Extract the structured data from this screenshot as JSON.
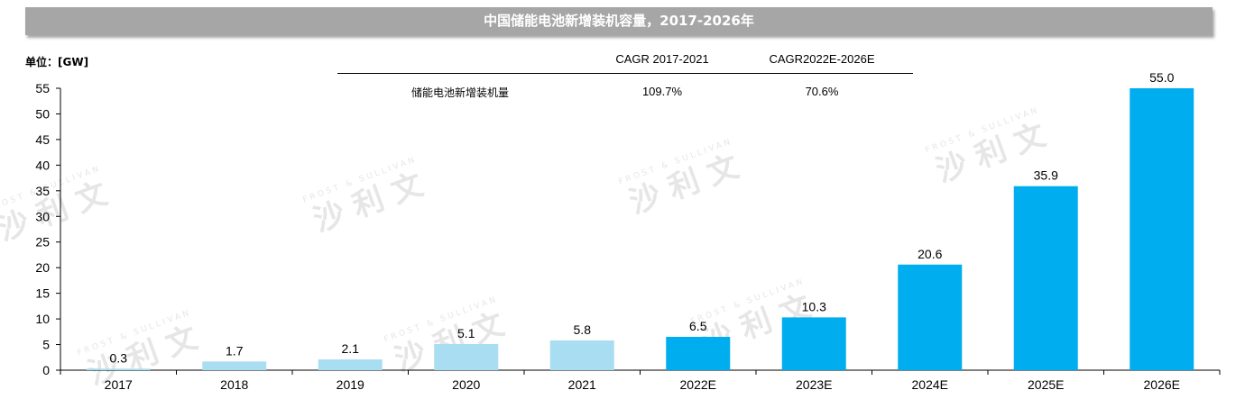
{
  "title": "中国储能电池新增装机容量，2017-2026年",
  "unit_label": "单位：[GW]",
  "cagr_table": {
    "headers": [
      "CAGR 2017-2021",
      "CAGR2022E-2026E"
    ],
    "row_label": "储能电池新增装机量",
    "values": [
      "109.7%",
      "70.6%"
    ]
  },
  "watermark": {
    "cn": "沙 利 文",
    "en": "FROST & SULLIVAN"
  },
  "chart_data": {
    "type": "bar",
    "title": "中国储能电池新增装机容量，2017-2026年",
    "ylabel": "单位：[GW]",
    "xlabel": "",
    "categories": [
      "2017",
      "2018",
      "2019",
      "2020",
      "2021",
      "2022E",
      "2023E",
      "2024E",
      "2025E",
      "2026E"
    ],
    "values": [
      0.3,
      1.7,
      2.1,
      5.1,
      5.8,
      6.5,
      10.3,
      20.6,
      35.9,
      55.0
    ],
    "value_labels": [
      "0.3",
      "1.7",
      "2.1",
      "5.1",
      "5.8",
      "6.5",
      "10.3",
      "20.6",
      "35.9",
      "55.0"
    ],
    "ylim": [
      0,
      55
    ],
    "yticks": [
      0,
      5,
      10,
      15,
      20,
      25,
      30,
      35,
      40,
      45,
      50,
      55
    ],
    "grid": false,
    "legend": "none",
    "colors": {
      "historical": "#a9def2",
      "forecast": "#00adef",
      "axis": "#000000"
    }
  }
}
